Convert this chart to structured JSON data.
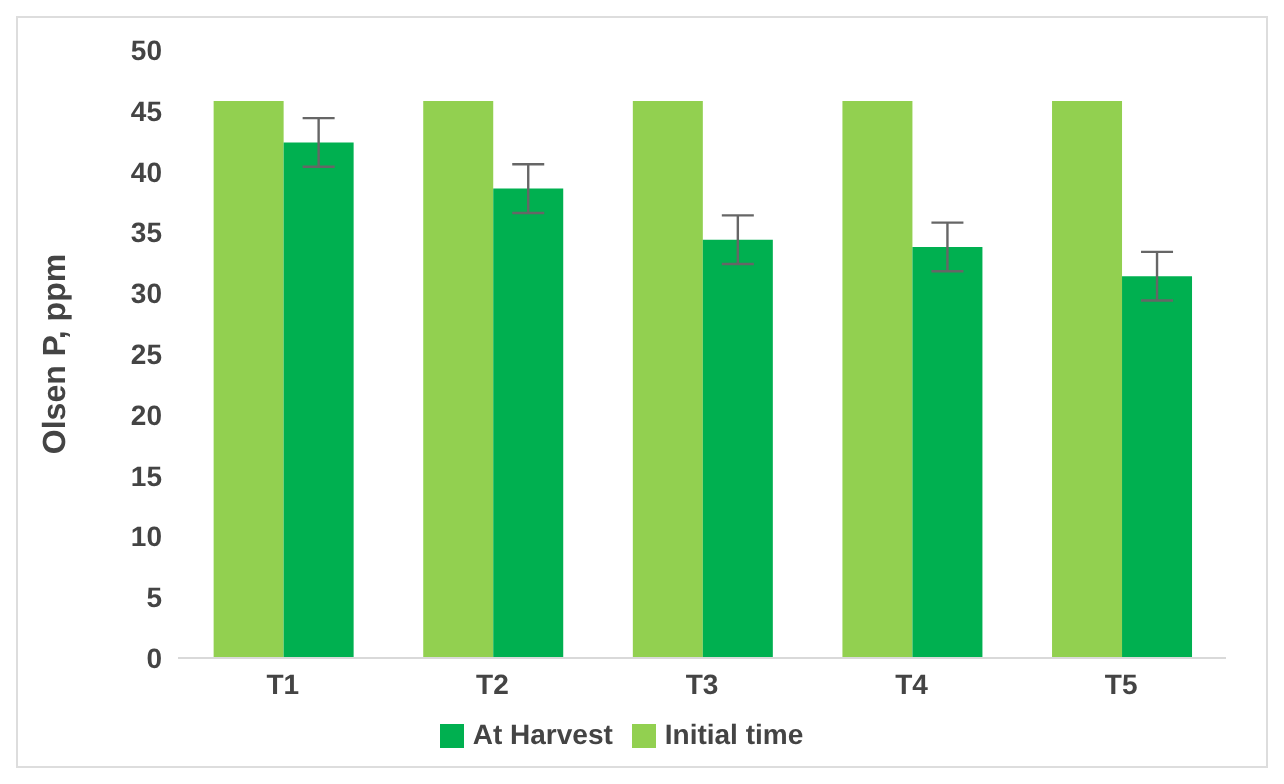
{
  "chart_data": {
    "type": "bar",
    "ylabel": "Olsen P, ppm",
    "categories": [
      "T1",
      "T2",
      "T3",
      "T4",
      "T5"
    ],
    "series": [
      {
        "name": "Initial time",
        "color": "#92d050",
        "values": [
          45.8,
          45.8,
          45.8,
          45.8,
          45.8
        ]
      },
      {
        "name": "At Harvest",
        "color": "#00b050",
        "values": [
          42.4,
          38.6,
          34.4,
          33.8,
          31.4
        ],
        "errors": [
          2,
          2,
          2,
          2,
          2
        ]
      }
    ],
    "ylim": [
      0,
      50
    ],
    "yticks": [
      0,
      5,
      10,
      15,
      20,
      25,
      30,
      35,
      40,
      45,
      50
    ],
    "grid": false,
    "legend": "bottom"
  }
}
